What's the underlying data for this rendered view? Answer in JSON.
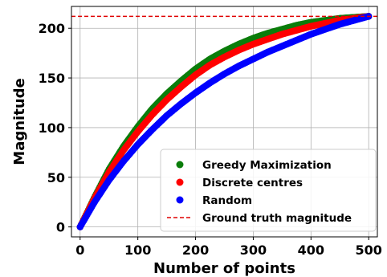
{
  "chart_data": {
    "type": "scatter",
    "title": "",
    "xlabel": "Number of points",
    "ylabel": "Magnitude",
    "xlim": [
      -15,
      515
    ],
    "ylim": [
      -10,
      222
    ],
    "xticks": [
      0,
      100,
      200,
      300,
      400,
      500
    ],
    "yticks": [
      0,
      50,
      100,
      150,
      200
    ],
    "grid": true,
    "legend_position": "lower-right",
    "ground_truth": {
      "name": "Ground truth magnitude",
      "value": 212,
      "color": "#e00000",
      "style": "dashed"
    },
    "series": [
      {
        "name": "Greedy Maximization",
        "color": "#0a7d0a",
        "x": [
          0,
          25,
          50,
          75,
          100,
          125,
          150,
          175,
          200,
          225,
          250,
          275,
          300,
          325,
          350,
          375,
          400,
          425,
          450,
          475,
          500
        ],
        "y": [
          0,
          30,
          58,
          81,
          101,
          119,
          134,
          147,
          159,
          169,
          177,
          184,
          190,
          195,
          199,
          203,
          206,
          208,
          210,
          211,
          212
        ]
      },
      {
        "name": "Discrete centres",
        "color": "#ff0000",
        "x": [
          0,
          25,
          50,
          75,
          100,
          125,
          150,
          175,
          200,
          225,
          250,
          275,
          300,
          325,
          350,
          375,
          400,
          425,
          450,
          475,
          500
        ],
        "y": [
          0,
          29,
          55,
          77,
          96,
          113,
          128,
          141,
          153,
          163,
          171,
          178,
          184,
          189,
          194,
          198,
          202,
          205,
          208,
          210,
          212
        ]
      },
      {
        "name": "Random",
        "color": "#0000ff",
        "x": [
          0,
          25,
          50,
          75,
          100,
          125,
          150,
          175,
          200,
          225,
          250,
          275,
          300,
          325,
          350,
          375,
          400,
          425,
          450,
          475,
          500
        ],
        "y": [
          0,
          25,
          47,
          66,
          83,
          98,
          112,
          124,
          135,
          145,
          154,
          162,
          169,
          176,
          182,
          188,
          194,
          199,
          204,
          208,
          212
        ]
      }
    ]
  }
}
